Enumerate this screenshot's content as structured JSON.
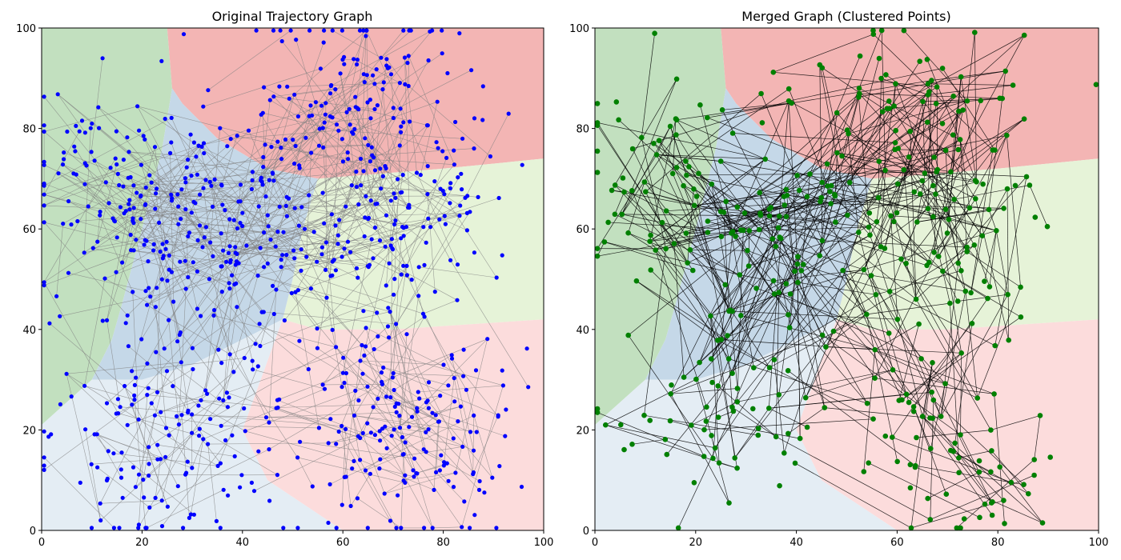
{
  "chart_data": [
    {
      "type": "scatter",
      "title": "Original Trajectory Graph",
      "xlim": [
        0,
        100
      ],
      "ylim": [
        0,
        100
      ],
      "xticks": [
        0,
        20,
        40,
        60,
        80,
        100
      ],
      "yticks": [
        0,
        20,
        40,
        60,
        80,
        100
      ],
      "grid": false,
      "point_color": "#0000ff",
      "edge_color": "#808080",
      "approx_point_count": 900,
      "region_background": true
    },
    {
      "type": "scatter",
      "title": "Merged Graph (Clustered Points)",
      "xlim": [
        0,
        100
      ],
      "ylim": [
        0,
        100
      ],
      "xticks": [
        0,
        20,
        40,
        60,
        80,
        100
      ],
      "yticks": [
        0,
        20,
        40,
        60,
        80,
        100
      ],
      "grid": false,
      "point_color": "#008000",
      "edge_color": "#000000",
      "approx_point_count": 420,
      "region_background": true
    }
  ],
  "regions": [
    {
      "name": "top-left",
      "color": "#c2e0bf",
      "polygon": [
        [
          0,
          100
        ],
        [
          25,
          100
        ],
        [
          26,
          88
        ],
        [
          24,
          76
        ],
        [
          20,
          60
        ],
        [
          16,
          45
        ],
        [
          14,
          38
        ],
        [
          10,
          30
        ],
        [
          0,
          21
        ]
      ]
    },
    {
      "name": "top-right",
      "color": "#f3b5b4",
      "polygon": [
        [
          25,
          100
        ],
        [
          100,
          100
        ],
        [
          100,
          74
        ],
        [
          80,
          72
        ],
        [
          55,
          70
        ],
        [
          45,
          72
        ],
        [
          35,
          78
        ],
        [
          28,
          85
        ],
        [
          26,
          88
        ]
      ]
    },
    {
      "name": "middle-right",
      "color": "#e6f3d8",
      "polygon": [
        [
          100,
          74
        ],
        [
          100,
          42
        ],
        [
          85,
          41
        ],
        [
          70,
          40
        ],
        [
          55,
          40
        ],
        [
          48,
          42
        ],
        [
          50,
          50
        ],
        [
          52,
          60
        ],
        [
          55,
          70
        ],
        [
          80,
          72
        ]
      ]
    },
    {
      "name": "center",
      "color": "#c5d8e8",
      "polygon": [
        [
          26,
          88
        ],
        [
          28,
          85
        ],
        [
          35,
          78
        ],
        [
          45,
          72
        ],
        [
          55,
          70
        ],
        [
          52,
          60
        ],
        [
          50,
          50
        ],
        [
          48,
          42
        ],
        [
          40,
          38
        ],
        [
          30,
          33
        ],
        [
          20,
          30
        ],
        [
          10,
          30
        ],
        [
          14,
          38
        ],
        [
          16,
          45
        ],
        [
          20,
          60
        ],
        [
          24,
          76
        ]
      ]
    },
    {
      "name": "bottom-left",
      "color": "#e4edf4",
      "polygon": [
        [
          0,
          21
        ],
        [
          10,
          30
        ],
        [
          20,
          30
        ],
        [
          30,
          33
        ],
        [
          40,
          38
        ],
        [
          48,
          42
        ],
        [
          40,
          20
        ],
        [
          45,
          10
        ],
        [
          60,
          0
        ],
        [
          0,
          0
        ]
      ]
    },
    {
      "name": "bottom-right",
      "color": "#fcdcdc",
      "polygon": [
        [
          48,
          42
        ],
        [
          55,
          40
        ],
        [
          70,
          40
        ],
        [
          85,
          41
        ],
        [
          100,
          42
        ],
        [
          100,
          0
        ],
        [
          60,
          0
        ],
        [
          45,
          10
        ],
        [
          40,
          20
        ]
      ]
    }
  ]
}
